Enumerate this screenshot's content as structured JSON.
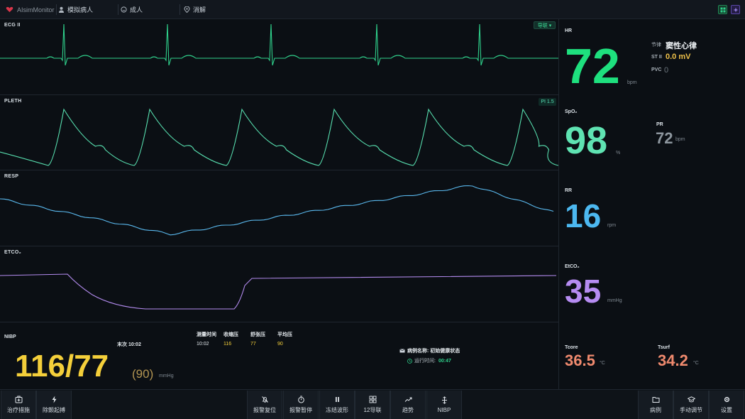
{
  "topbar": {
    "app_name": "AIsimMonitor",
    "patient": "模拟病人",
    "category": "成人",
    "alarm_state": "消解",
    "colors": {
      "green_btn": "#1f8a55",
      "purple_btn": "#5a47a8"
    }
  },
  "waves": {
    "ecg": {
      "label": "ECG II",
      "lead_button": "导联 ▾",
      "color": "#2fd08b"
    },
    "pleth": {
      "label": "PLETH",
      "pi_badge": "PI 1.5",
      "color": "#58e0b0"
    },
    "resp": {
      "label": "RESP",
      "color": "#5ab9ee"
    },
    "etco2": {
      "label": "ETCO₂",
      "color": "#b48cf0"
    }
  },
  "vitals": {
    "hr": {
      "label": "HR",
      "value": "72",
      "unit": "bpm",
      "color": "#1ee07e"
    },
    "rhythm": {
      "key": "节律",
      "value": "窦性心律"
    },
    "st": {
      "key": "ST II",
      "value": "0.0 mV",
      "color": "#f0c24a"
    },
    "pvc": {
      "key": "PVC",
      "value": "0"
    },
    "spo2": {
      "label": "SpO₂",
      "value": "98",
      "unit": "%",
      "color": "#5fe3b2"
    },
    "pr": {
      "label": "PR",
      "value": "72",
      "unit": "bpm",
      "color": "#8d969e"
    },
    "rr": {
      "label": "RR",
      "value": "16",
      "unit": "rpm",
      "color": "#4cb8f0"
    },
    "etco2": {
      "label": "EtCO₂",
      "value": "35",
      "unit": "mmHg",
      "color": "#b68cf2"
    },
    "tcore": {
      "label": "Tcore",
      "value": "36.5",
      "unit": "°C",
      "color": "#f08a6e"
    },
    "tsurf": {
      "label": "Tsurf",
      "value": "34.2",
      "unit": "°C",
      "color": "#f08a6e"
    }
  },
  "nibp": {
    "label": "NIBP",
    "last_time": "末次 10:02",
    "value": "116/77",
    "mean": "(90)",
    "unit": "mmHg",
    "value_color": "#f4cf3a",
    "mean_color": "#b39552",
    "table": {
      "headers": [
        "测量时间",
        "收缩压",
        "舒张压",
        "平均压"
      ],
      "row": [
        "10:02",
        "116",
        "77",
        "90"
      ]
    }
  },
  "case": {
    "name_label": "病例名称: 初始健康状态",
    "runtime_label": "运行时间:",
    "runtime_value": "00:47"
  },
  "toolbar": {
    "left": [
      {
        "label": "治疗措施",
        "icon": "first-aid-icon"
      },
      {
        "label": "除颤起搏",
        "icon": "lightning-icon"
      }
    ],
    "center": [
      {
        "label": "报警复位",
        "icon": "bell-off-icon"
      },
      {
        "label": "报警暂停",
        "icon": "timer-icon"
      },
      {
        "label": "冻结波形",
        "icon": "pause-icon"
      },
      {
        "label": "12导联",
        "icon": "grid-icon"
      },
      {
        "label": "趋势",
        "icon": "trend-icon"
      },
      {
        "label": "NIBP",
        "icon": "pressure-icon"
      }
    ],
    "right": [
      {
        "label": "病例",
        "icon": "folder-icon"
      },
      {
        "label": "手动调节",
        "icon": "cap-icon"
      },
      {
        "label": "设置",
        "icon": "gear-icon"
      }
    ]
  }
}
